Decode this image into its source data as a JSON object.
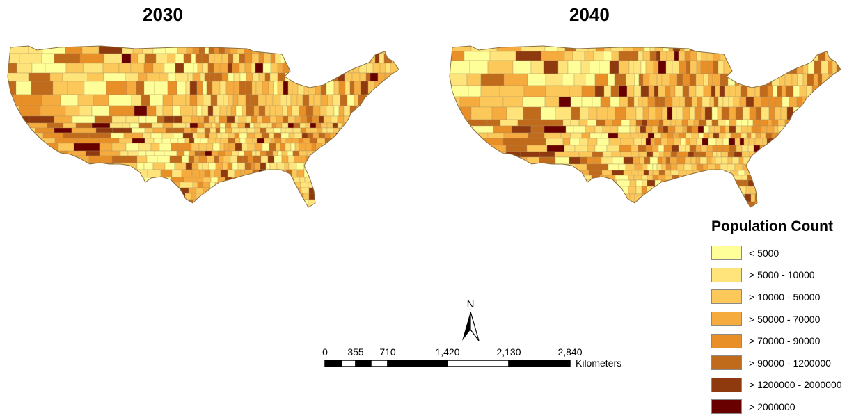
{
  "maps": [
    {
      "title": "2030",
      "seed": 11
    },
    {
      "title": "2040",
      "seed": 29
    }
  ],
  "legend": {
    "title": "Population Count",
    "classes": [
      {
        "label": "< 5000",
        "color": "#ffff99"
      },
      {
        "label": "> 5000 - 10000",
        "color": "#fee47a"
      },
      {
        "label": "> 10000 - 50000",
        "color": "#fdc85a"
      },
      {
        "label": "> 50000 - 70000",
        "color": "#f6ab3e"
      },
      {
        "label": "> 70000 - 90000",
        "color": "#e98f28"
      },
      {
        "label": "> 90000 - 1200000",
        "color": "#c06a1c"
      },
      {
        "label": "> 1200000 - 2000000",
        "color": "#8e3a0e"
      },
      {
        "label": "> 2000000",
        "color": "#690000"
      }
    ]
  },
  "north_arrow": {
    "label": "N"
  },
  "scale_bar": {
    "ticks": [
      "0",
      "355",
      "710",
      "1,420",
      "2,130",
      "2,840"
    ],
    "unit": "Kilometers"
  }
}
